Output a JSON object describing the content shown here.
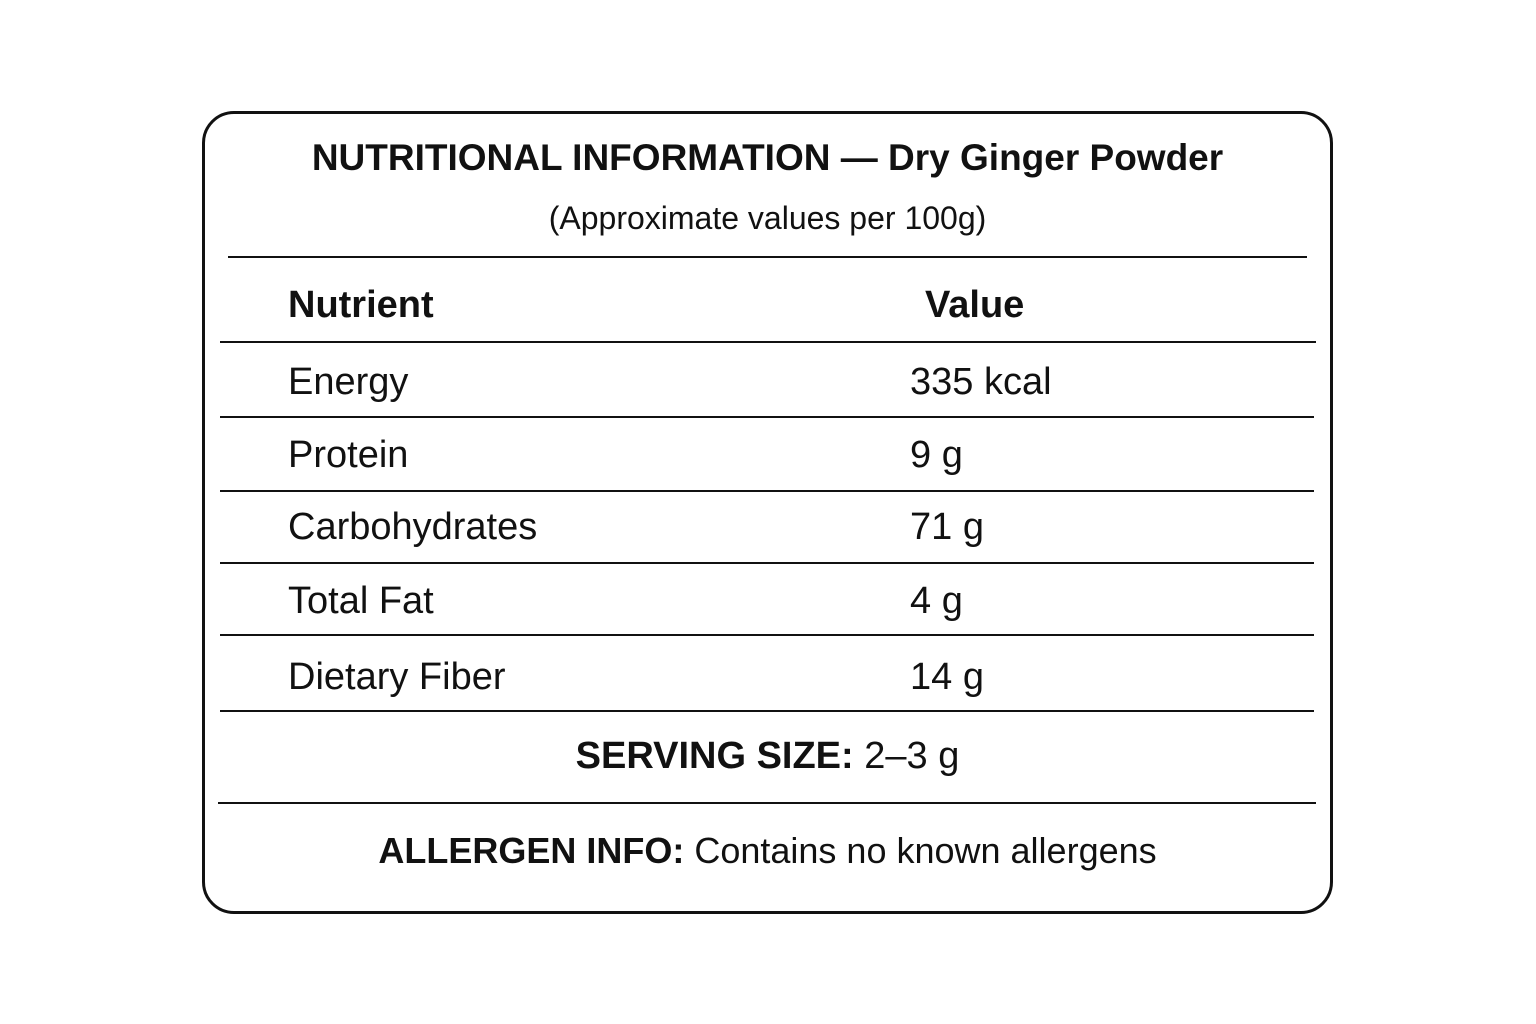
{
  "title": {
    "heading": "NUTRITIONAL INFORMATION",
    "separator": "—",
    "product": "Dry Ginger Powder"
  },
  "subtitle": "(Approximate values per 100g)",
  "table": {
    "header": [
      "Nutrient",
      "Value"
    ],
    "rows": [
      [
        "Energy",
        "335 kcal"
      ],
      [
        "Protein",
        "9 g"
      ],
      [
        "Carbohydrates",
        "71 g"
      ],
      [
        "Total Fat",
        "4 g"
      ],
      [
        "Dietary Fiber",
        "14 g"
      ]
    ]
  },
  "serving": {
    "label": "SERVING SIZE:",
    "value": "2–3 g"
  },
  "allergen": {
    "label": "ALLERGEN INFO:",
    "value": "Contains no known allergens"
  }
}
